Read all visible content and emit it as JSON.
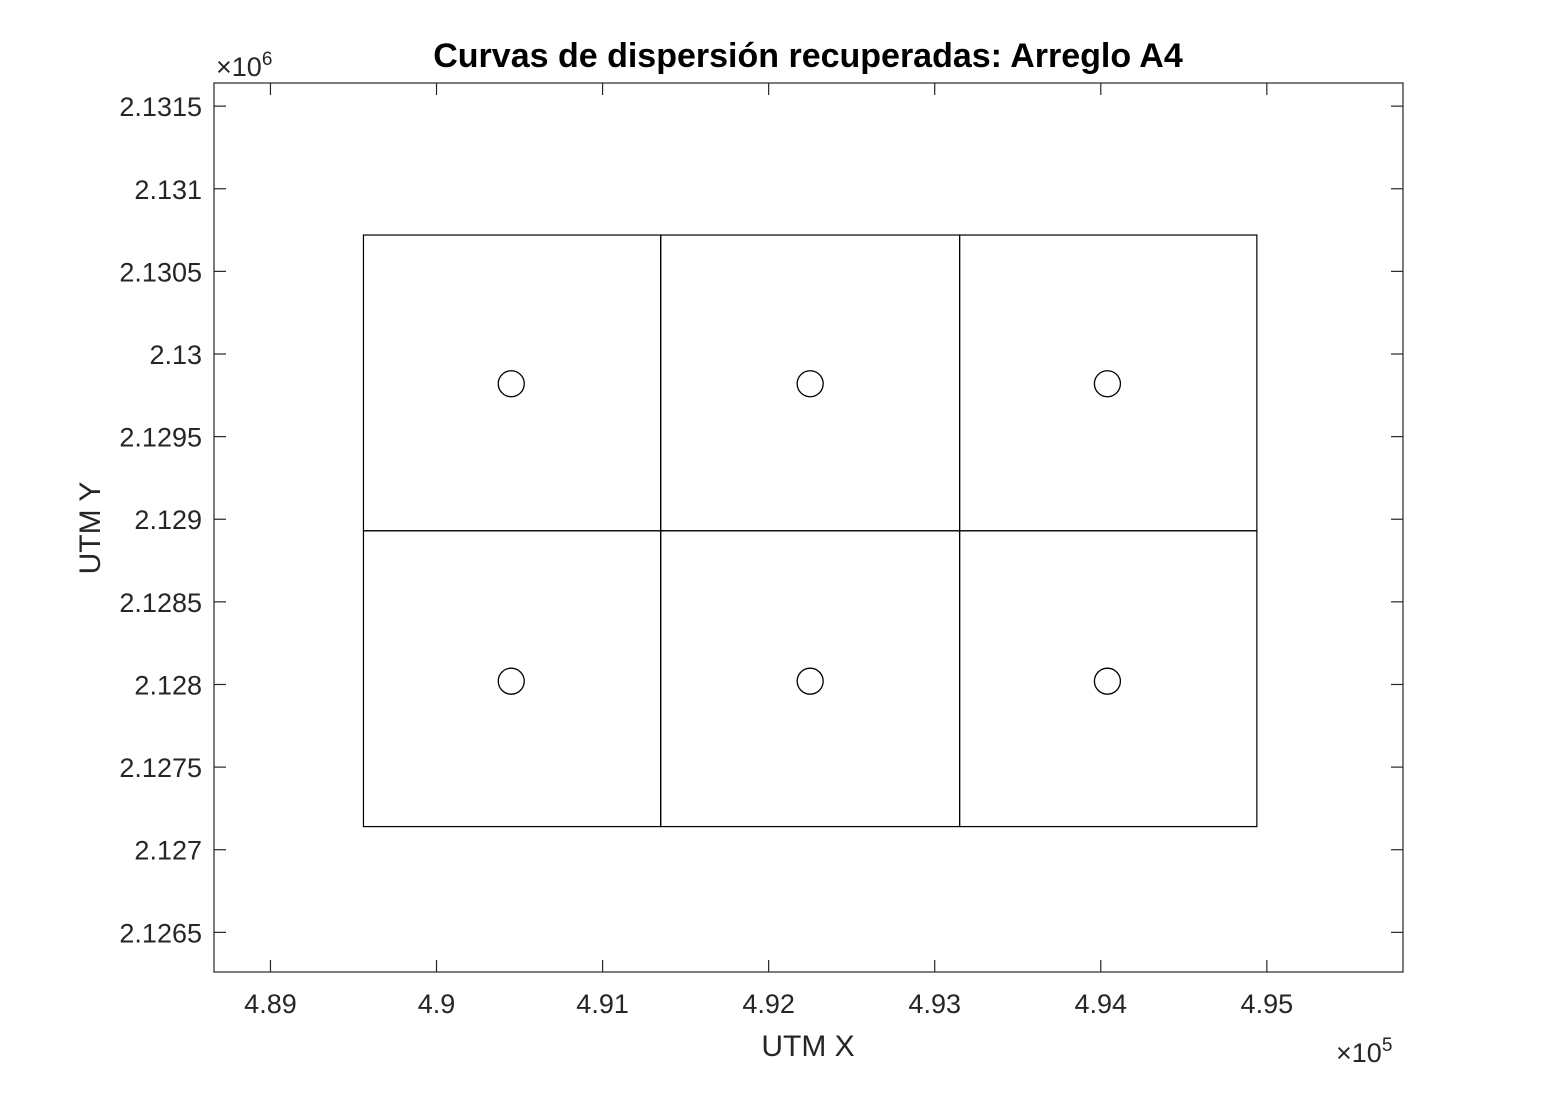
{
  "chart_data": {
    "type": "scatter",
    "title": "Curvas de dispersión recuperadas: Arreglo A4",
    "xlabel": "UTM X",
    "ylabel": "UTM Y",
    "x_exponent_label": "×10",
    "x_exponent_power": "5",
    "y_exponent_label": "×10",
    "y_exponent_power": "6",
    "xlim": [
      488660,
      495820
    ],
    "ylim": [
      2126260,
      2131640
    ],
    "x_ticks": [
      489000,
      490000,
      491000,
      492000,
      493000,
      494000,
      495000
    ],
    "x_tick_labels": [
      "4.89",
      "4.9",
      "4.91",
      "4.92",
      "4.93",
      "4.94",
      "4.95"
    ],
    "y_ticks": [
      2126500,
      2127000,
      2127500,
      2128000,
      2128500,
      2129000,
      2129500,
      2130000,
      2130500,
      2131000,
      2131500
    ],
    "y_tick_labels": [
      "2.1265",
      "2.127",
      "2.1275",
      "2.128",
      "2.1285",
      "2.129",
      "2.1295",
      "2.13",
      "2.1305",
      "2.131",
      "2.1315"
    ],
    "grid": false,
    "cell_x_edges": [
      489560,
      491350,
      493150,
      494940
    ],
    "cell_y_edges": [
      2127140,
      2128930,
      2130720
    ],
    "points": [
      {
        "x": 490450,
        "y": 2129820
      },
      {
        "x": 492250,
        "y": 2129820
      },
      {
        "x": 494040,
        "y": 2129820
      },
      {
        "x": 490450,
        "y": 2128020
      },
      {
        "x": 492250,
        "y": 2128020
      },
      {
        "x": 494040,
        "y": 2128020
      }
    ],
    "colors": {
      "line": "#000000",
      "axis": "#262626"
    }
  }
}
